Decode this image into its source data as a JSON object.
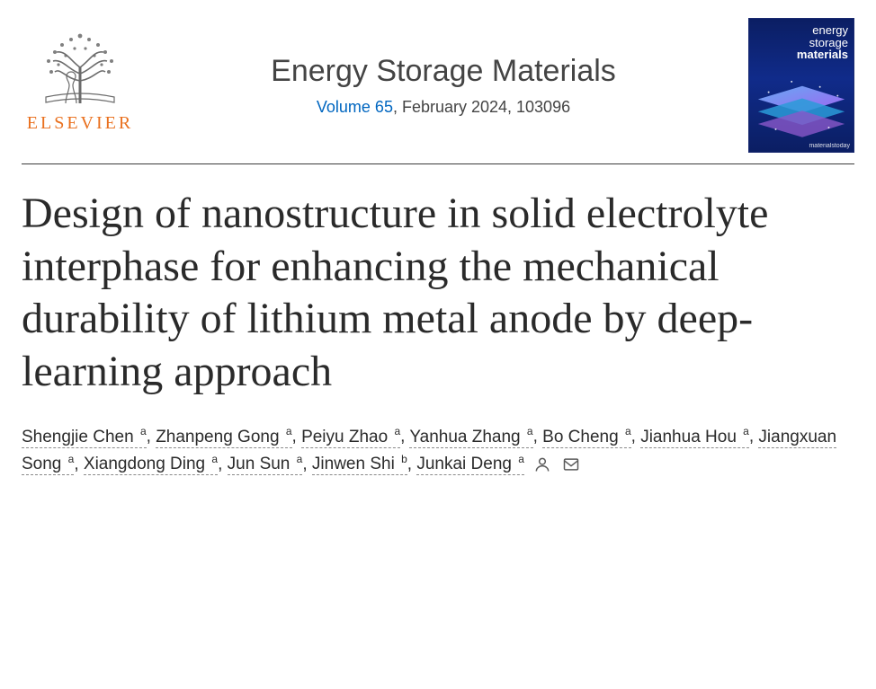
{
  "publisher": {
    "name": "ELSEVIER",
    "logo_color": "#e9701e",
    "tree_stroke": "#6b6b6b"
  },
  "journal": {
    "title": "Energy Storage Materials",
    "volume_label": "Volume 65",
    "issue_rest": ", February 2024, 103096",
    "link_color": "#0066c0"
  },
  "cover": {
    "line1": "energy",
    "line2": "storage",
    "line3": "materials",
    "footer": "materialstoday",
    "bg_top": "#0b1e63",
    "bg_mid": "#102b8a"
  },
  "article": {
    "title": "Design of nanostructure in solid electrolyte interphase for enhancing the mechanical durability of lithium metal anode by deep-learning approach",
    "title_fontsize": 48,
    "title_color": "#2a2a2a"
  },
  "authors": [
    {
      "name": "Shengjie Chen",
      "affil": "a"
    },
    {
      "name": "Zhanpeng Gong",
      "affil": "a"
    },
    {
      "name": "Peiyu Zhao",
      "affil": "a"
    },
    {
      "name": "Yanhua Zhang",
      "affil": "a"
    },
    {
      "name": "Bo Cheng",
      "affil": "a"
    },
    {
      "name": "Jianhua Hou",
      "affil": "a"
    },
    {
      "name": "Jiangxuan Song",
      "affil": "a"
    },
    {
      "name": "Xiangdong Ding",
      "affil": "a"
    },
    {
      "name": "Jun Sun",
      "affil": "a"
    },
    {
      "name": "Jinwen Shi",
      "affil": "b"
    },
    {
      "name": "Junkai Deng",
      "affil": "a"
    }
  ],
  "author_style": {
    "fontsize": 19,
    "underline_color": "#8a8a8a",
    "text_color": "#2b2b2b"
  },
  "rule_color": "#3a3a3a",
  "background_color": "#ffffff"
}
